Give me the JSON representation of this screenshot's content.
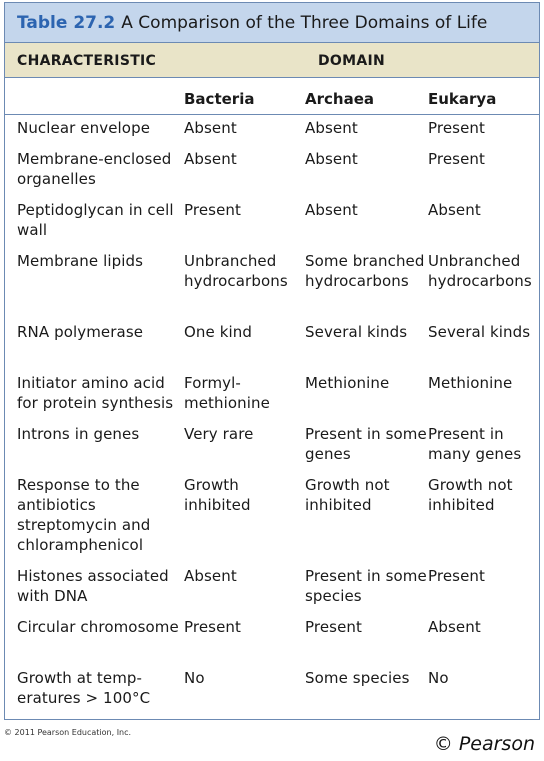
{
  "table": {
    "number": "Table 27.2",
    "title": "A Comparison of the Three Domains of Life",
    "characteristic_header": "CHARACTERISTIC",
    "domain_header": "DOMAIN",
    "columns": [
      "Bacteria",
      "Archaea",
      "Eukarya"
    ],
    "rows": [
      {
        "characteristic": "Nuclear envelope",
        "bacteria": "Absent",
        "archaea": "Absent",
        "eukarya": "Present"
      },
      {
        "characteristic": "Membrane-enclosed organelles",
        "bacteria": "Absent",
        "archaea": "Absent",
        "eukarya": "Present"
      },
      {
        "characteristic": "Peptidoglycan in cell wall",
        "bacteria": "Present",
        "archaea": "Absent",
        "eukarya": "Absent"
      },
      {
        "characteristic": "Membrane lipids",
        "bacteria": "Unbranched hydrocarbons",
        "archaea": "Some branched hydrocarbons",
        "eukarya": "Unbranched hydrocarbons"
      },
      {
        "characteristic": "RNA polymerase",
        "bacteria": "One kind",
        "archaea": "Several kinds",
        "eukarya": "Several kinds"
      },
      {
        "characteristic": "Initiator amino acid for protein synthesis",
        "bacteria": "Formyl-methionine",
        "archaea": "Methionine",
        "eukarya": "Methionine"
      },
      {
        "characteristic": "Introns in genes",
        "bacteria": "Very rare",
        "archaea": "Present in some genes",
        "eukarya": "Present in many genes"
      },
      {
        "characteristic": "Response to the antibiotics streptomycin and chloramphenicol",
        "bacteria": "Growth inhibited",
        "archaea": "Growth not inhibited",
        "eukarya": "Growth not inhibited"
      },
      {
        "characteristic": "Histones associated with DNA",
        "bacteria": "Absent",
        "archaea": "Present in some species",
        "eukarya": "Present"
      },
      {
        "characteristic": "Circular chromosome",
        "bacteria": "Present",
        "archaea": "Present",
        "eukarya": "Absent"
      },
      {
        "characteristic": "Growth at temp-eratures > 100°C",
        "bacteria": "No",
        "archaea": "Some species",
        "eukarya": "No"
      }
    ]
  },
  "footer": {
    "copyright_small": "© 2011 Pearson Education, Inc.",
    "copyright_symbol": "©",
    "publisher": "Pearson"
  },
  "colors": {
    "title_background": "#c4d6ec",
    "header_background": "#e9e4c8",
    "border": "#6c8ab3",
    "table_number": "#2c64b0"
  }
}
